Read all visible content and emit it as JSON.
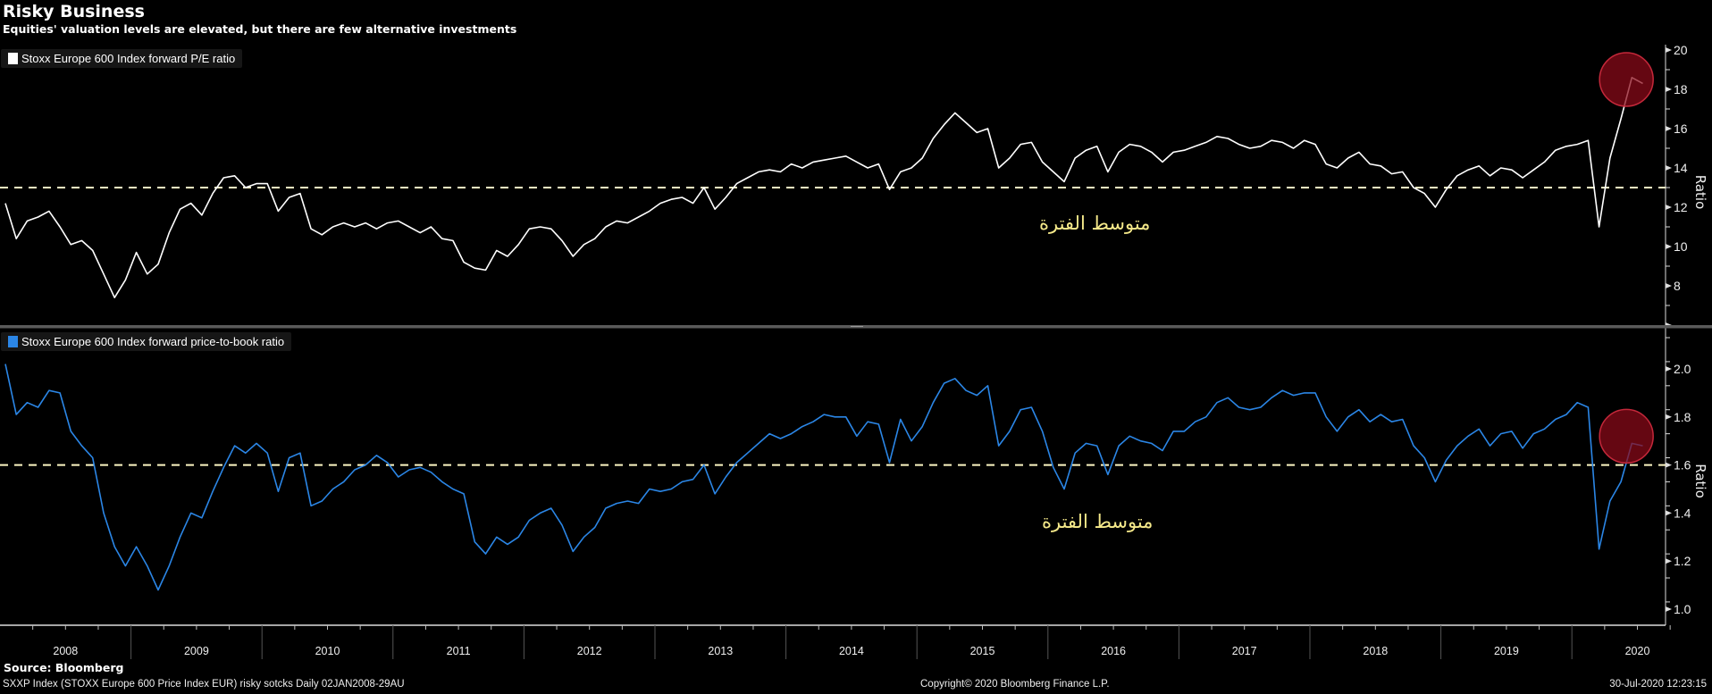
{
  "header": {
    "title": "Risky Business",
    "subtitle": "Equities' valuation levels are elevated, but there are few alternative investments"
  },
  "annotations": {
    "average_label_top": "متوسط الفترة",
    "average_label_bottom": "متوسط الفترة",
    "highlight_color": "#8c0a19"
  },
  "footer": {
    "source": "Source: Bloomberg",
    "description": "SXXP Index (STOXX Europe 600 Price Index EUR) risky sotcks  Daily 02JAN2008-29AU",
    "copyright": "Copyright© 2020 Bloomberg Finance L.P.",
    "timestamp": "30-Jul-2020 12:23:15"
  },
  "chart_data": [
    {
      "type": "line",
      "title": "Stoxx Europe 600 Index forward P/E ratio",
      "legend": "Stoxx Europe 600 Index forward P/E ratio",
      "legend_placement": "top-left",
      "color": "#ffffff",
      "ylabel": "Ratio",
      "ylim": [
        6,
        20.3
      ],
      "yticks": [
        "8",
        "10",
        "12",
        "14",
        "16",
        "18",
        "20"
      ],
      "ytick_values": [
        8,
        10,
        12,
        14,
        16,
        18,
        20
      ],
      "average_line": 13,
      "x_start": "2008-01",
      "x_step": "month",
      "values": [
        12.2,
        10.4,
        11.3,
        11.5,
        11.8,
        11.0,
        10.1,
        10.3,
        9.8,
        8.6,
        7.4,
        8.3,
        9.7,
        8.6,
        9.1,
        10.7,
        11.9,
        12.2,
        11.6,
        12.7,
        13.5,
        13.6,
        13.0,
        13.2,
        13.2,
        11.8,
        12.5,
        12.7,
        10.9,
        10.6,
        11.0,
        11.2,
        11.0,
        11.2,
        10.9,
        11.2,
        11.3,
        11.0,
        10.7,
        11.0,
        10.4,
        10.3,
        9.2,
        8.9,
        8.8,
        9.8,
        9.5,
        10.1,
        10.9,
        11.0,
        10.9,
        10.3,
        9.5,
        10.1,
        10.4,
        11.0,
        11.3,
        11.2,
        11.5,
        11.8,
        12.2,
        12.4,
        12.5,
        12.2,
        13.0,
        11.9,
        12.5,
        13.2,
        13.5,
        13.8,
        13.9,
        13.8,
        14.2,
        14.0,
        14.3,
        14.4,
        14.5,
        14.6,
        14.3,
        14.0,
        14.2,
        12.9,
        13.8,
        14.0,
        14.5,
        15.5,
        16.2,
        16.8,
        16.3,
        15.8,
        16.0,
        14.0,
        14.5,
        15.2,
        15.3,
        14.3,
        13.8,
        13.3,
        14.5,
        14.9,
        15.1,
        13.8,
        14.8,
        15.2,
        15.1,
        14.8,
        14.3,
        14.8,
        14.9,
        15.1,
        15.3,
        15.6,
        15.5,
        15.2,
        15.0,
        15.1,
        15.4,
        15.3,
        15.0,
        15.4,
        15.2,
        14.2,
        14.0,
        14.5,
        14.8,
        14.2,
        14.1,
        13.7,
        13.8,
        13.0,
        12.7,
        12.0,
        12.9,
        13.6,
        13.9,
        14.1,
        13.6,
        14.0,
        13.9,
        13.5,
        13.9,
        14.3,
        14.9,
        15.1,
        15.2,
        15.4,
        11.0,
        14.5,
        16.5,
        18.6,
        18.3
      ],
      "highlight": {
        "x": "2020-06",
        "y": 18.5
      }
    },
    {
      "type": "line",
      "title": "Stoxx Europe 600 Index forward price-to-book ratio",
      "legend": "Stoxx Europe 600 Index forward price-to-book ratio",
      "legend_placement": "top-left",
      "color": "#2b86e6",
      "ylabel": "Ratio",
      "ylim": [
        0.93,
        2.17
      ],
      "yticks": [
        "1.0",
        "1.2",
        "1.4",
        "1.6",
        "1.8",
        "2.0"
      ],
      "ytick_values": [
        1.0,
        1.2,
        1.4,
        1.6,
        1.8,
        2.0
      ],
      "average_line": 1.6,
      "x_start": "2008-01",
      "x_step": "month",
      "values": [
        2.02,
        1.81,
        1.86,
        1.84,
        1.91,
        1.9,
        1.74,
        1.68,
        1.63,
        1.4,
        1.26,
        1.18,
        1.26,
        1.18,
        1.08,
        1.18,
        1.3,
        1.4,
        1.38,
        1.49,
        1.59,
        1.68,
        1.65,
        1.69,
        1.65,
        1.49,
        1.63,
        1.65,
        1.43,
        1.45,
        1.5,
        1.53,
        1.58,
        1.6,
        1.64,
        1.61,
        1.55,
        1.58,
        1.59,
        1.57,
        1.53,
        1.5,
        1.48,
        1.28,
        1.23,
        1.3,
        1.27,
        1.3,
        1.37,
        1.4,
        1.42,
        1.35,
        1.24,
        1.3,
        1.34,
        1.42,
        1.44,
        1.45,
        1.44,
        1.5,
        1.49,
        1.5,
        1.53,
        1.54,
        1.6,
        1.48,
        1.55,
        1.61,
        1.65,
        1.69,
        1.73,
        1.71,
        1.73,
        1.76,
        1.78,
        1.81,
        1.8,
        1.8,
        1.72,
        1.78,
        1.77,
        1.61,
        1.79,
        1.7,
        1.76,
        1.86,
        1.94,
        1.96,
        1.91,
        1.89,
        1.93,
        1.68,
        1.74,
        1.83,
        1.84,
        1.74,
        1.59,
        1.5,
        1.65,
        1.69,
        1.68,
        1.56,
        1.68,
        1.72,
        1.7,
        1.69,
        1.66,
        1.74,
        1.74,
        1.78,
        1.8,
        1.86,
        1.88,
        1.84,
        1.83,
        1.84,
        1.88,
        1.91,
        1.89,
        1.9,
        1.9,
        1.8,
        1.74,
        1.8,
        1.83,
        1.78,
        1.81,
        1.78,
        1.79,
        1.68,
        1.63,
        1.53,
        1.62,
        1.68,
        1.72,
        1.75,
        1.68,
        1.73,
        1.74,
        1.67,
        1.73,
        1.75,
        1.79,
        1.81,
        1.86,
        1.84,
        1.25,
        1.45,
        1.53,
        1.69,
        1.68
      ],
      "highlight": {
        "x": "2020-06",
        "y": 1.72
      }
    }
  ],
  "xaxis": {
    "years": [
      "2008",
      "2009",
      "2010",
      "2011",
      "2012",
      "2013",
      "2014",
      "2015",
      "2016",
      "2017",
      "2018",
      "2019",
      "2020"
    ]
  }
}
